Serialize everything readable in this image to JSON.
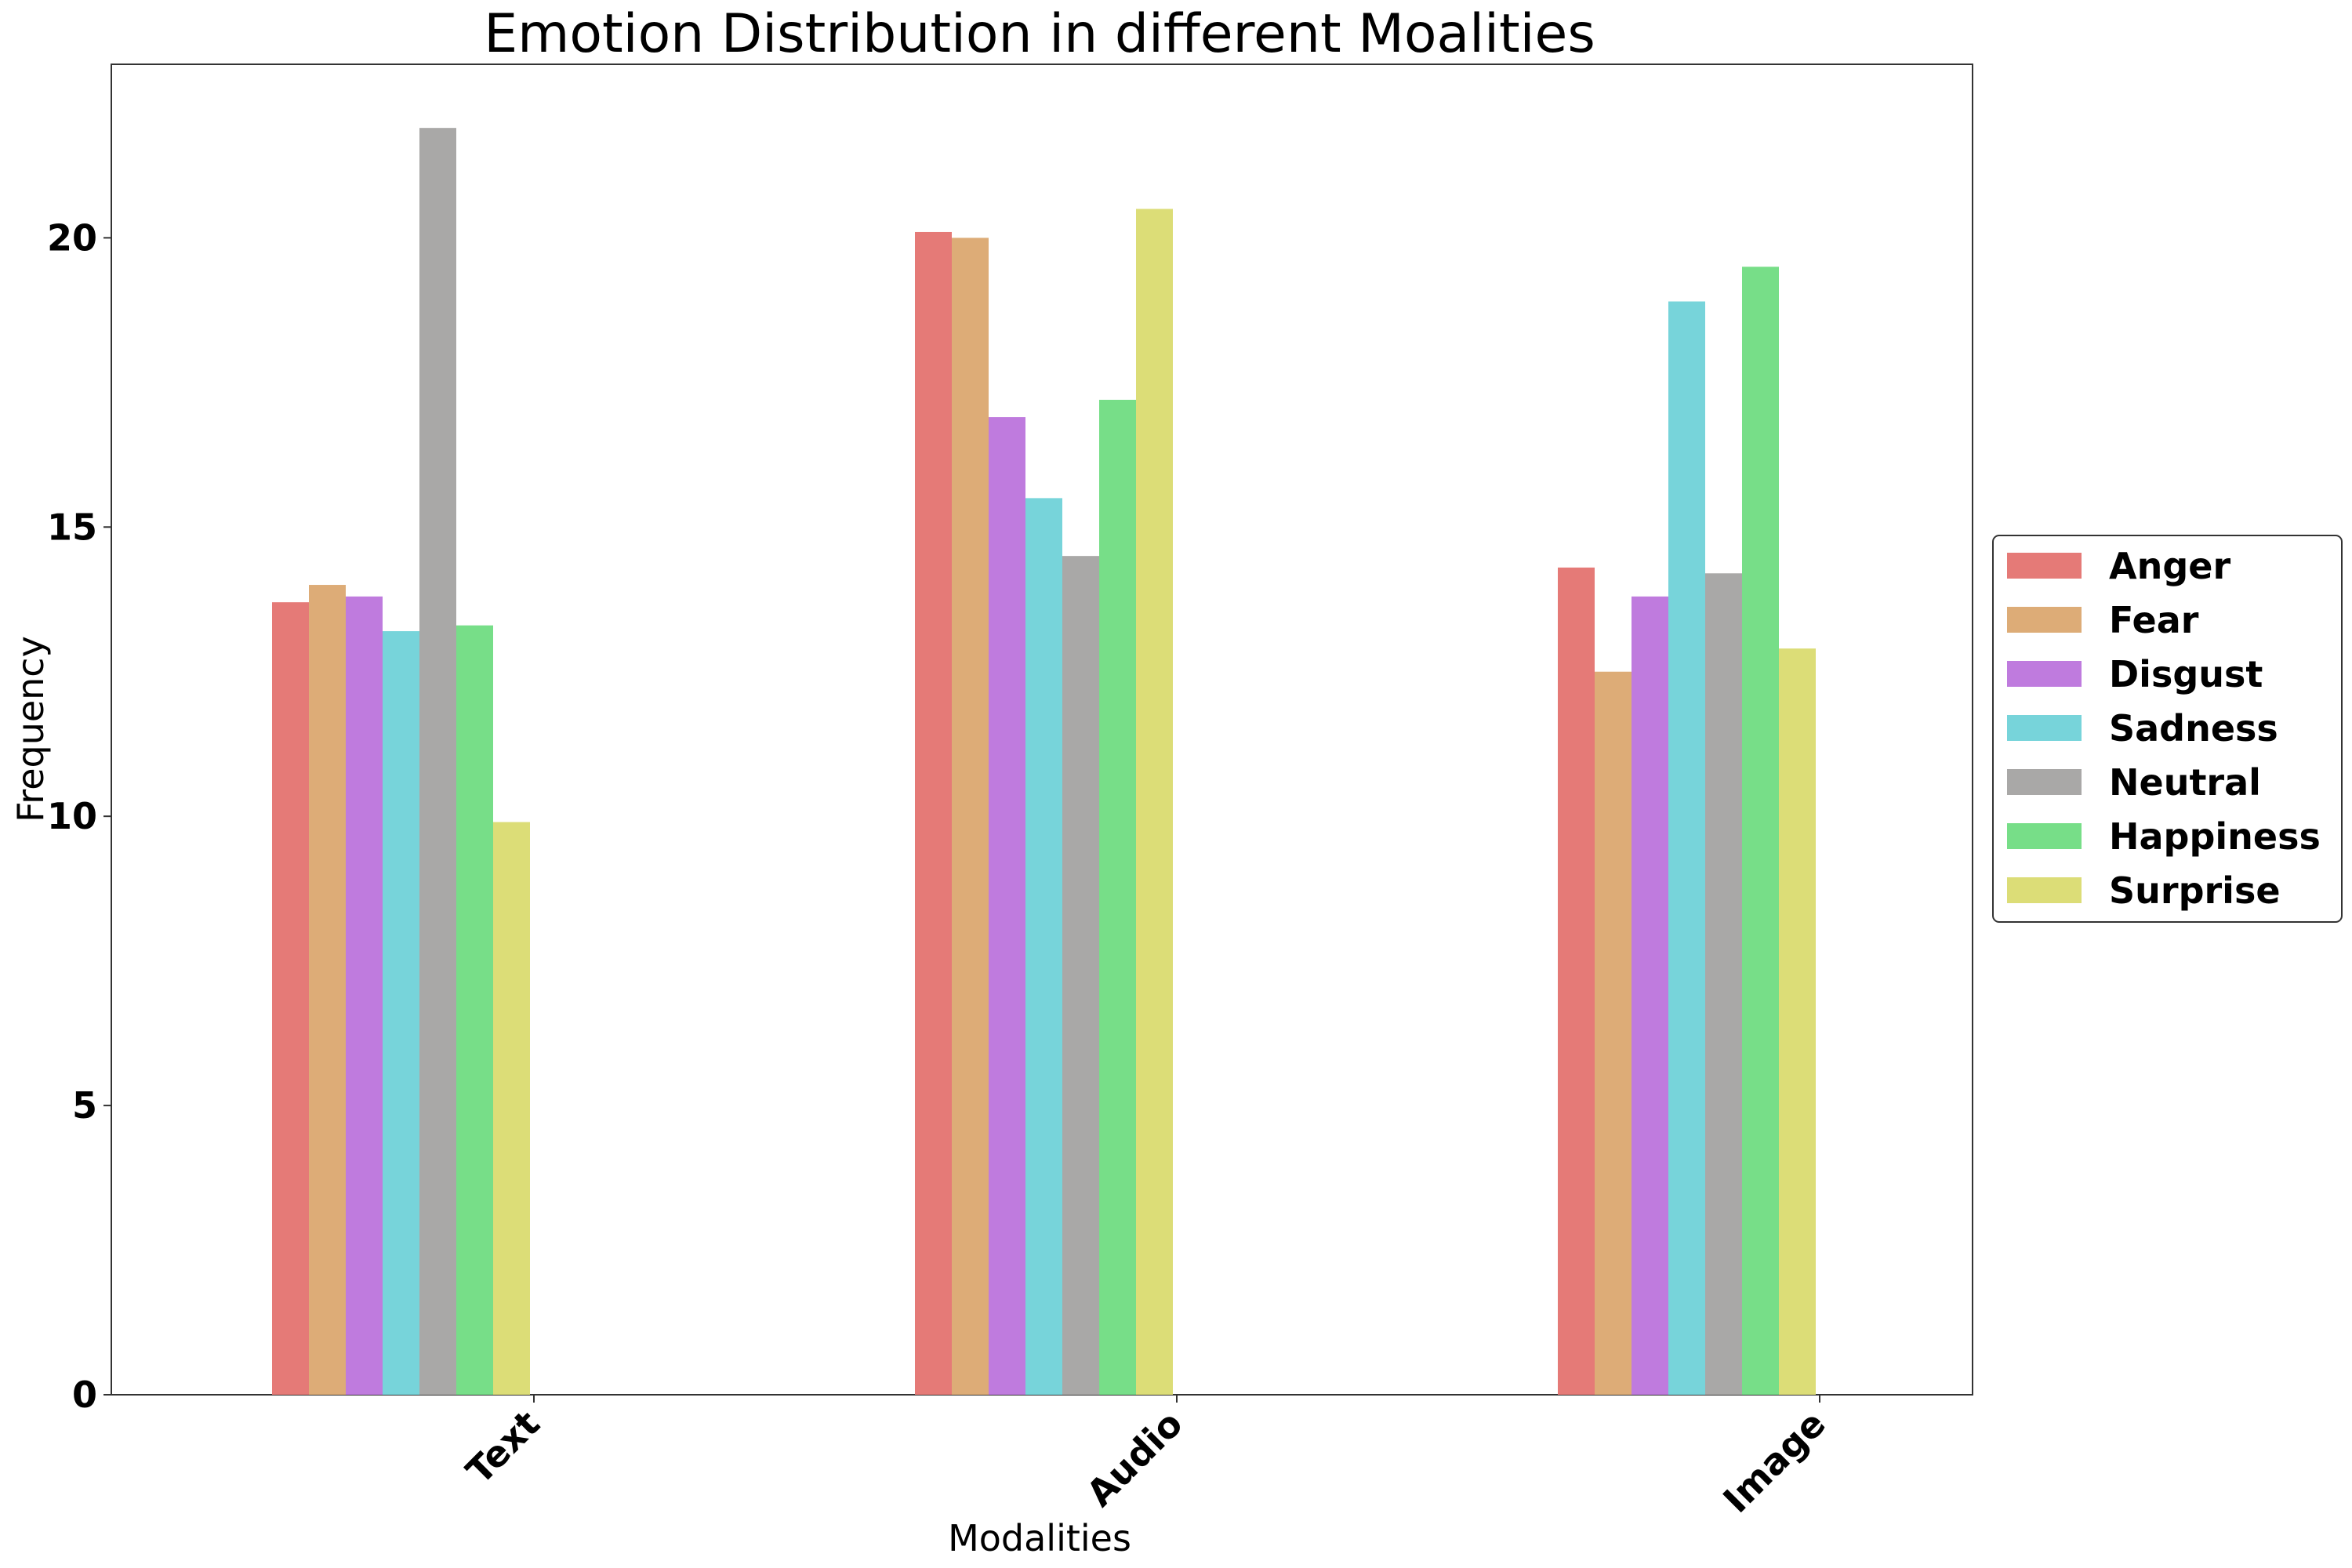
{
  "chart_data": {
    "type": "bar",
    "title": "Emotion Distribution in different Moalities",
    "xlabel": "Modalities",
    "ylabel": "Frequency",
    "categories": [
      "Text",
      "Audio",
      "Image"
    ],
    "ylim": [
      0,
      23
    ],
    "yticks": [
      0,
      5,
      10,
      15,
      20
    ],
    "grid": false,
    "legend_position": "right",
    "series": [
      {
        "name": "Anger",
        "color": "#e57a77",
        "values": [
          13.7,
          20.1,
          14.3
        ]
      },
      {
        "name": "Fear",
        "color": "#ddac77",
        "values": [
          14.0,
          20.0,
          12.5
        ]
      },
      {
        "name": "Disgust",
        "color": "#bf7bde",
        "values": [
          13.8,
          16.9,
          13.8
        ]
      },
      {
        "name": "Sadness",
        "color": "#77d4da",
        "values": [
          13.2,
          15.5,
          18.9
        ]
      },
      {
        "name": "Neutral",
        "color": "#a9a8a7",
        "values": [
          21.9,
          14.5,
          14.2
        ]
      },
      {
        "name": "Happiness",
        "color": "#77de88",
        "values": [
          13.3,
          17.2,
          19.5
        ]
      },
      {
        "name": "Surprise",
        "color": "#dcdd77",
        "values": [
          9.9,
          20.5,
          12.9
        ]
      }
    ]
  }
}
